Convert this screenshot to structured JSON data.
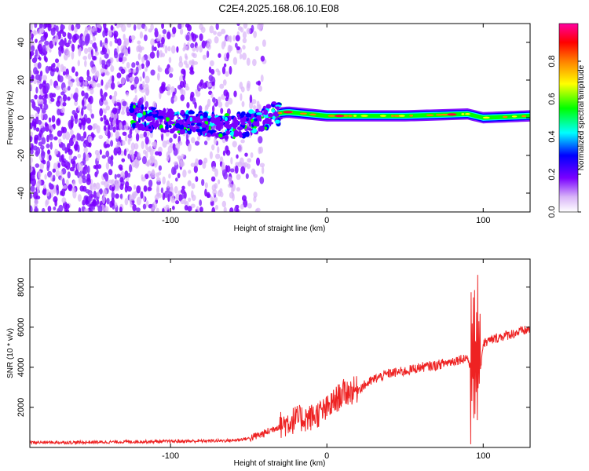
{
  "title": "C2E4.2025.168.06.10.E08",
  "chart_data": [
    {
      "type": "heatmap",
      "xlabel": "Height of straight line (km)",
      "ylabel": "Frequency (Hz)",
      "xlim": [
        -190,
        130
      ],
      "ylim": [
        -50,
        50
      ],
      "x_ticks": [
        -100,
        0,
        100
      ],
      "x_tick_labels": [
        "-100",
        "0",
        "100"
      ],
      "y_ticks": [
        -40,
        -20,
        0,
        20,
        40
      ],
      "y_tick_labels": [
        "-40",
        "-20",
        "0",
        "20",
        "40"
      ],
      "colorbar": {
        "label": "Normalized spectral amplitude",
        "range": [
          0,
          1
        ],
        "ticks": [
          0,
          0.2,
          0.4,
          0.6,
          0.8
        ],
        "tick_labels": [
          "0.0",
          "0.2",
          "0.4",
          "0.6",
          "0.8"
        ],
        "colormap": [
          "#ffffff",
          "#d8b4f8",
          "#7a00ff",
          "#0000ff",
          "#00ffff",
          "#00ff00",
          "#ffff00",
          "#ff8000",
          "#ff0000",
          "#ff00a0"
        ]
      },
      "features": {
        "noise_region_x": [
          -190,
          -50
        ],
        "carrier_centerline": [
          [
            -120,
            0
          ],
          [
            -100,
            -2
          ],
          [
            -80,
            -3
          ],
          [
            -60,
            -5
          ],
          [
            -45,
            -2
          ],
          [
            -35,
            2
          ],
          [
            -25,
            3
          ],
          [
            0,
            1
          ],
          [
            50,
            1
          ],
          [
            90,
            2
          ],
          [
            100,
            0
          ],
          [
            130,
            1
          ]
        ],
        "carrier_peaks_x": [
          -25,
          8,
          80
        ]
      }
    },
    {
      "type": "line",
      "xlabel": "Height of straight line (km)",
      "ylabel": "SNR (10 * v/v)",
      "xlim": [
        -190,
        130
      ],
      "ylim": [
        0,
        9400
      ],
      "x_ticks": [
        -100,
        0,
        100
      ],
      "x_tick_labels": [
        "-100",
        "0",
        "100"
      ],
      "y_ticks": [
        2000,
        4000,
        6000,
        8000
      ],
      "y_tick_labels": [
        "2000",
        "4000",
        "6000",
        "8000"
      ],
      "line_color": "#ee2222",
      "series": [
        {
          "x": [
            -190,
            -160,
            -130,
            -100,
            -80,
            -60,
            -50,
            -40,
            -30,
            -20,
            -10,
            0,
            10,
            20,
            30,
            40,
            50,
            60,
            70,
            80,
            85,
            90,
            93,
            95,
            97,
            100,
            110,
            120,
            130
          ],
          "y": [
            250,
            250,
            280,
            300,
            320,
            350,
            450,
            700,
            1100,
            1400,
            1500,
            1900,
            2700,
            2900,
            3400,
            3700,
            3800,
            4000,
            4100,
            4300,
            4400,
            4500,
            3500,
            9000,
            3000,
            5200,
            5500,
            5700,
            5900
          ]
        }
      ]
    }
  ]
}
